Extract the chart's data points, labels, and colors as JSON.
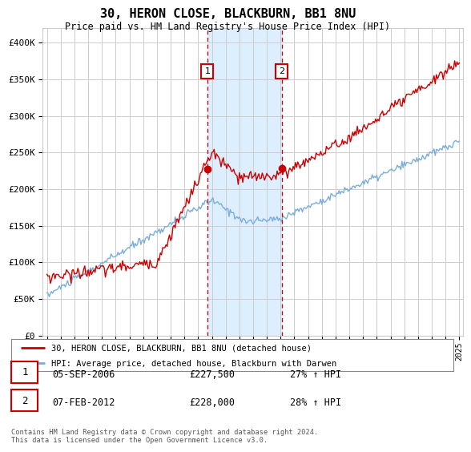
{
  "title": "30, HERON CLOSE, BLACKBURN, BB1 8NU",
  "subtitle": "Price paid vs. HM Land Registry's House Price Index (HPI)",
  "ylabel_ticks": [
    "£0",
    "£50K",
    "£100K",
    "£150K",
    "£200K",
    "£250K",
    "£300K",
    "£350K",
    "£400K"
  ],
  "ytick_values": [
    0,
    50000,
    100000,
    150000,
    200000,
    250000,
    300000,
    350000,
    400000
  ],
  "ylim": [
    0,
    420000
  ],
  "xlim_start": 1994.7,
  "xlim_end": 2025.3,
  "event1_x": 2006.67,
  "event1_y": 227500,
  "event1_label": "1",
  "event1_date": "05-SEP-2006",
  "event1_price": "£227,500",
  "event1_hpi": "27% ↑ HPI",
  "event2_x": 2012.08,
  "event2_y": 228000,
  "event2_label": "2",
  "event2_date": "07-FEB-2012",
  "event2_price": "£228,000",
  "event2_hpi": "28% ↑ HPI",
  "legend_line1": "30, HERON CLOSE, BLACKBURN, BB1 8NU (detached house)",
  "legend_line2": "HPI: Average price, detached house, Blackburn with Darwen",
  "footer": "Contains HM Land Registry data © Crown copyright and database right 2024.\nThis data is licensed under the Open Government Licence v3.0.",
  "property_color": "#cc0000",
  "hpi_color": "#7aadda",
  "shade_color": "#ddeeff",
  "event_line_color": "#cc0000",
  "grid_color": "#cccccc",
  "background_color": "#ffffff"
}
